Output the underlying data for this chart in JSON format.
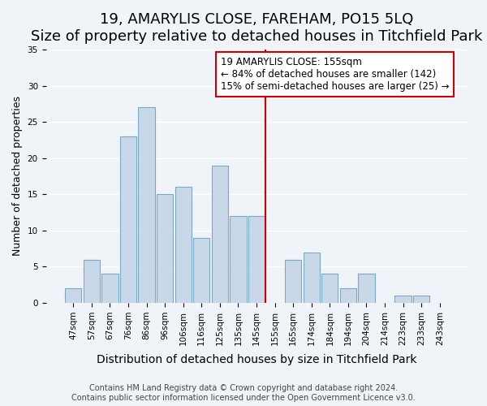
{
  "title": "19, AMARYLIS CLOSE, FAREHAM, PO15 5LQ",
  "subtitle": "Size of property relative to detached houses in Titchfield Park",
  "xlabel": "Distribution of detached houses by size in Titchfield Park",
  "ylabel": "Number of detached properties",
  "bar_labels": [
    "47sqm",
    "57sqm",
    "67sqm",
    "76sqm",
    "86sqm",
    "96sqm",
    "106sqm",
    "116sqm",
    "125sqm",
    "135sqm",
    "145sqm",
    "155sqm",
    "165sqm",
    "174sqm",
    "184sqm",
    "194sqm",
    "204sqm",
    "214sqm",
    "223sqm",
    "233sqm",
    "243sqm"
  ],
  "bar_values": [
    2,
    6,
    4,
    23,
    27,
    15,
    16,
    9,
    19,
    12,
    12,
    0,
    6,
    7,
    4,
    2,
    4,
    0,
    1,
    1,
    0
  ],
  "bar_color": "#c8d8e8",
  "bar_edge_color": "#7aa8c8",
  "vline_color": "#cc0000",
  "ylim": [
    0,
    35
  ],
  "yticks": [
    0,
    5,
    10,
    15,
    20,
    25,
    30,
    35
  ],
  "annotation_title": "19 AMARYLIS CLOSE: 155sqm",
  "annotation_line1": "← 84% of detached houses are smaller (142)",
  "annotation_line2": "15% of semi-detached houses are larger (25) →",
  "footnote1": "Contains HM Land Registry data © Crown copyright and database right 2024.",
  "footnote2": "Contains public sector information licensed under the Open Government Licence v3.0.",
  "background_color": "#f0f4f8",
  "grid_color": "#ffffff",
  "title_fontsize": 13,
  "subtitle_fontsize": 10,
  "xlabel_fontsize": 10,
  "ylabel_fontsize": 9,
  "tick_fontsize": 7.5,
  "annotation_fontsize": 8.5,
  "footnote_fontsize": 7
}
